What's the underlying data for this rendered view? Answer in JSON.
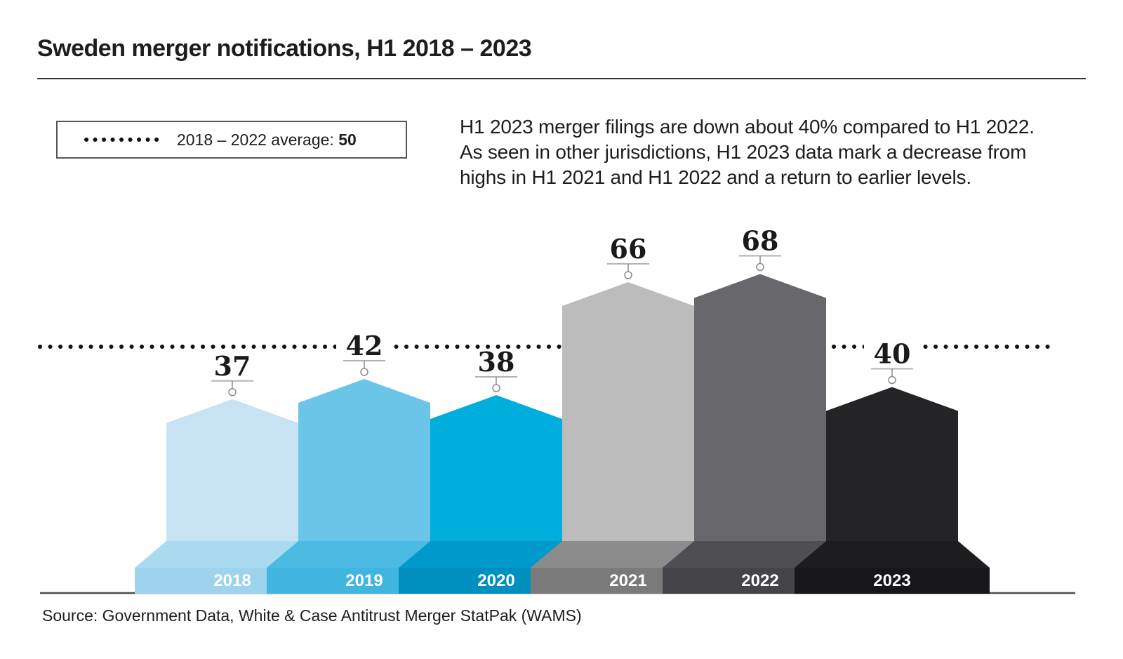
{
  "header": {
    "title": "Sweden merger notifications, H1 2018 – 2023"
  },
  "legend": {
    "label": "2018 – 2022 average:",
    "value": "50"
  },
  "annotation": {
    "lines": [
      "H1 2023 merger filings are down about 40% compared to H1 2022.",
      "As seen in other jurisdictions, H1 2023 data mark a decrease from",
      "highs in H1 2021 and H1 2022 and a return to earlier levels."
    ]
  },
  "source": {
    "text": "Source: Government Data, White & Case Antitrust Merger StatPak (WAMS)"
  },
  "chart_data": {
    "type": "bar",
    "title": "Sweden merger notifications, H1 2018 – 2023",
    "categories": [
      "2018",
      "2019",
      "2020",
      "2021",
      "2022",
      "2023"
    ],
    "values": [
      37,
      42,
      38,
      66,
      68,
      40
    ],
    "average_line": {
      "label": "2018 – 2022 average",
      "value": 50
    },
    "ylim": [
      0,
      75
    ],
    "xlabel": "",
    "ylabel": "",
    "grid": false,
    "legend_position": "top-left",
    "marker": "open-circle",
    "bar_styles": [
      {
        "year": "2018",
        "column": "#c6e2f3",
        "bevel": "#a9daef",
        "band": "#9dd3ec"
      },
      {
        "year": "2019",
        "column": "#6ac5e8",
        "bevel": "#4cbbe3",
        "band": "#3fb5e0"
      },
      {
        "year": "2020",
        "column": "#00aede",
        "bevel": "#0099cb",
        "band": "#0090bf"
      },
      {
        "year": "2021",
        "column": "#bcbcbc",
        "bevel": "#8c8c8c",
        "band": "#7a7a7a"
      },
      {
        "year": "2022",
        "column": "#68686c",
        "bevel": "#4f4f53",
        "band": "#454549"
      },
      {
        "year": "2023",
        "column": "#242427",
        "bevel": "#1d1d1f",
        "band": "#17171a"
      }
    ],
    "value_label_color": "#1a1a1a",
    "category_label_color": "#ffffff",
    "average_line_color": "#111111",
    "axis_line_color": "#4c4c4e",
    "marker_stroke_color": "#8a8a8a",
    "label_rule_color": "#b3b3b3"
  }
}
